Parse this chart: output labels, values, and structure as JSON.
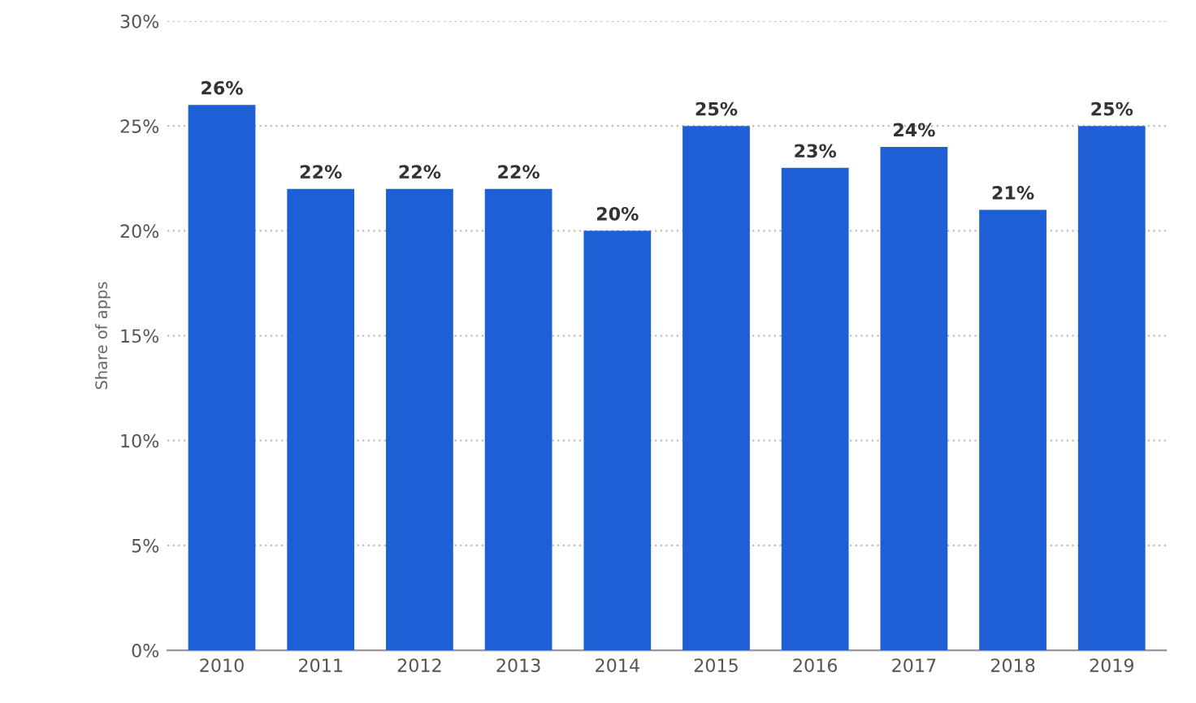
{
  "chart_data": {
    "type": "bar",
    "ylabel": "Share of apps",
    "categories": [
      "2010",
      "2011",
      "2012",
      "2013",
      "2014",
      "2015",
      "2016",
      "2017",
      "2018",
      "2019"
    ],
    "values": [
      26,
      22,
      22,
      22,
      20,
      25,
      23,
      24,
      21,
      25
    ],
    "value_labels": [
      "26%",
      "22%",
      "22%",
      "22%",
      "20%",
      "25%",
      "23%",
      "24%",
      "21%",
      "25%"
    ],
    "color": "#1f5fd6",
    "ylim": [
      0,
      30
    ],
    "yticks": [
      {
        "value": 0,
        "label": "0%"
      },
      {
        "value": 5,
        "label": "5%"
      },
      {
        "value": 10,
        "label": "10%"
      },
      {
        "value": 15,
        "label": "15%"
      },
      {
        "value": 20,
        "label": "20%"
      },
      {
        "value": 25,
        "label": "25%"
      },
      {
        "value": 30,
        "label": "30%"
      }
    ],
    "grid": "y"
  }
}
